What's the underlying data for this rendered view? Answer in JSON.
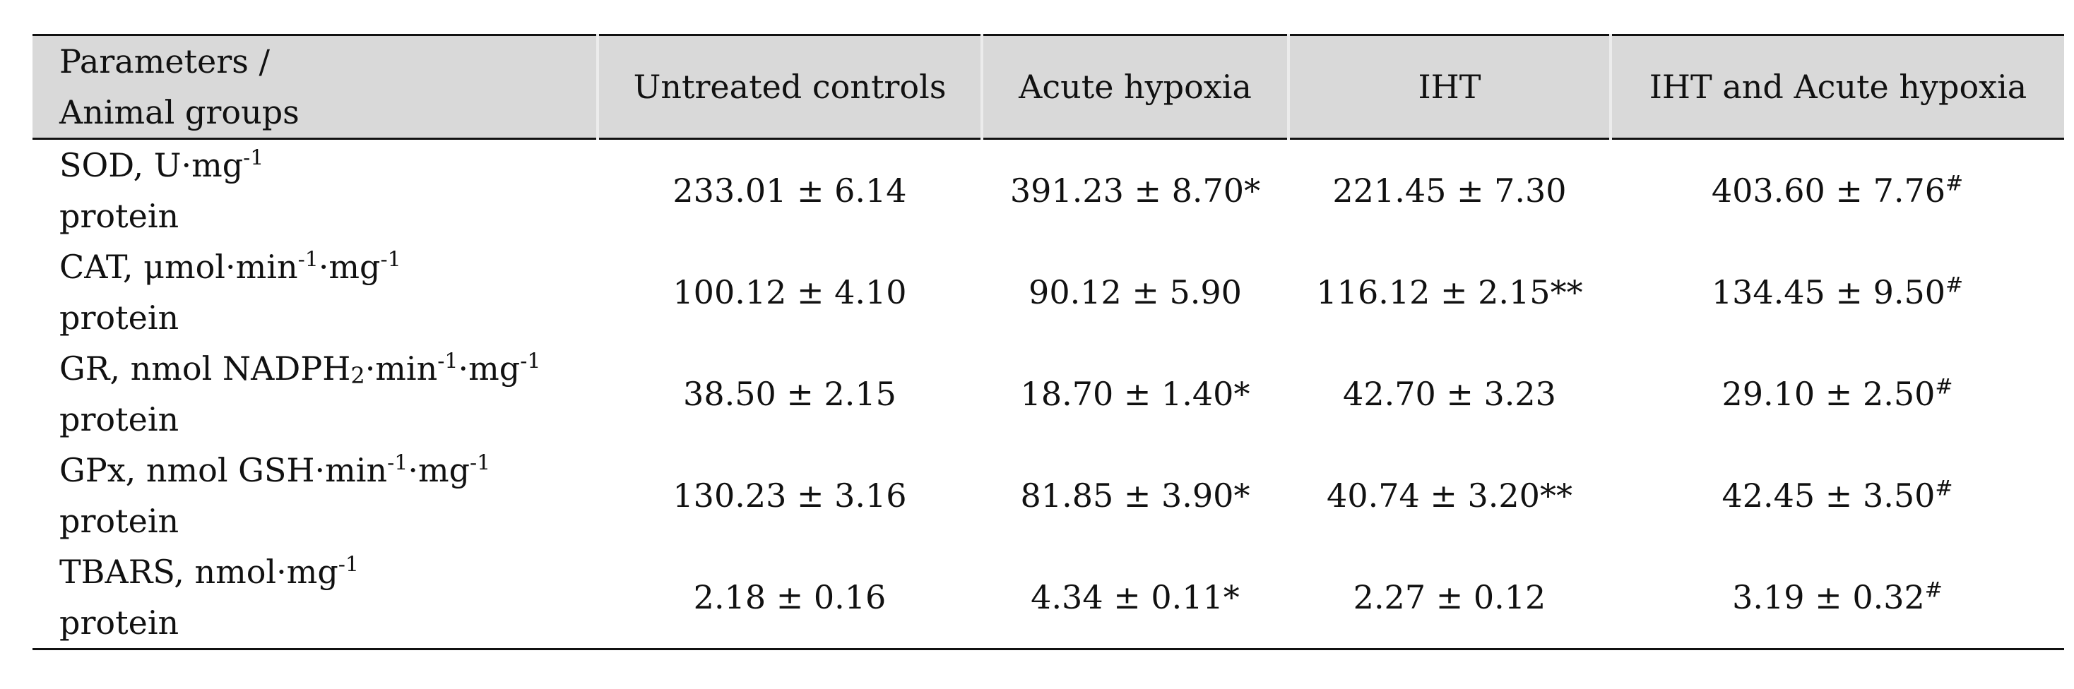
{
  "table": {
    "header": {
      "param_col_line1": "Parameters /",
      "param_col_line2": "Animal groups",
      "groups": [
        "Untreated controls",
        "Acute hypoxia",
        "IHT",
        "IHT and Acute hypoxia"
      ]
    },
    "rows": [
      {
        "name": "sod",
        "label": [
          {
            "t": "SOD, U·mg"
          },
          {
            "sup": "-1"
          }
        ],
        "unit_line2": "protein",
        "values": [
          "233.01 ± 6.14",
          "391.23 ± 8.70*",
          "221.45 ± 7.30",
          "403.60 ± 7.76#"
        ]
      },
      {
        "name": "cat",
        "label": [
          {
            "t": "CAT, μmol·min"
          },
          {
            "sup": "-1"
          },
          {
            "t": "·mg"
          },
          {
            "sup": "-1"
          }
        ],
        "unit_line2": "protein",
        "values": [
          "100.12 ± 4.10",
          "90.12 ± 5.90",
          "116.12 ± 2.15**",
          "134.45 ± 9.50#"
        ]
      },
      {
        "name": "gr",
        "label": [
          {
            "t": "GR, nmol NADPH"
          },
          {
            "sub": "2"
          },
          {
            "t": "·min"
          },
          {
            "sup": "-1"
          },
          {
            "t": "·mg"
          },
          {
            "sup": "-1"
          }
        ],
        "unit_line2": "protein",
        "values": [
          "38.50 ± 2.15",
          "18.70 ± 1.40*",
          "42.70 ± 3.23",
          "29.10 ± 2.50#"
        ]
      },
      {
        "name": "gpx",
        "label": [
          {
            "t": "GPx, nmol GSH·min"
          },
          {
            "sup": "-1"
          },
          {
            "t": "·mg"
          },
          {
            "sup": "-1"
          }
        ],
        "unit_line2": "protein",
        "values": [
          "130.23 ± 3.16",
          "81.85 ± 3.90*",
          "40.74 ± 3.20**",
          "42.45 ± 3.50#"
        ]
      },
      {
        "name": "tbars",
        "label": [
          {
            "t": "TBARS, nmol·mg"
          },
          {
            "sup": "-1"
          }
        ],
        "unit_line2": "protein",
        "values": [
          "2.18 ± 0.16",
          "4.34 ± 0.11*",
          "2.27 ± 0.12",
          "3.19 ± 0.32#"
        ]
      }
    ]
  }
}
